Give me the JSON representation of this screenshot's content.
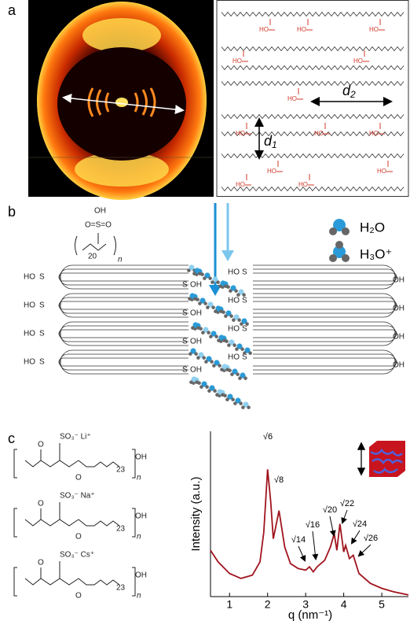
{
  "panel_a": {
    "label": "a",
    "d1": "d",
    "d1_sub": "1",
    "d2": "d",
    "d2_sub": "2",
    "acid_label": "HO"
  },
  "panel_b": {
    "label": "b",
    "monomer": {
      "oh": "OH",
      "sulfonyl": "O=S=O",
      "repeat": "20",
      "n": "n"
    },
    "legend": [
      {
        "name": "H₂O"
      },
      {
        "name": "H₃O⁺"
      }
    ],
    "end_left": "HO",
    "end_right": "OH",
    "sulfur": "S"
  },
  "panel_c": {
    "label": "c",
    "polymers": [
      {
        "group": "SO₃⁻ Li⁺",
        "repeat": "23",
        "n": "n",
        "end": "OH",
        "oxygen": "O"
      },
      {
        "group": "SO₃⁻ Na⁺",
        "repeat": "23",
        "n": "n",
        "end": "OH",
        "oxygen": "O"
      },
      {
        "group": "SO₃⁻ Cs⁺",
        "repeat": "23",
        "n": "n",
        "end": "OH",
        "oxygen": "O"
      }
    ]
  },
  "chart_data": {
    "type": "line",
    "x_label": "q (nm⁻¹)",
    "y_label": "Intensity (a.u.)",
    "x": [
      0.5,
      0.7,
      1.0,
      1.3,
      1.6,
      1.8,
      1.9,
      2.0,
      2.08,
      2.15,
      2.3,
      2.45,
      2.6,
      2.8,
      3.0,
      3.1,
      3.2,
      3.3,
      3.5,
      3.65,
      3.75,
      3.82,
      3.9,
      4.0,
      4.05,
      4.15,
      4.25,
      4.4,
      4.7,
      5.0,
      5.3,
      5.7
    ],
    "series": [
      {
        "color": "#a0141e",
        "values": [
          0.28,
          0.21,
          0.14,
          0.11,
          0.13,
          0.21,
          0.39,
          0.77,
          0.58,
          0.35,
          0.52,
          0.3,
          0.2,
          0.17,
          0.16,
          0.18,
          0.15,
          0.18,
          0.22,
          0.3,
          0.38,
          0.28,
          0.44,
          0.27,
          0.31,
          0.23,
          0.25,
          0.14,
          0.08,
          0.05,
          0.03,
          0.01
        ]
      }
    ],
    "xlim": [
      0.5,
      5.7
    ],
    "xticks": [
      1,
      2,
      3,
      4,
      5
    ],
    "ylim": [
      0,
      1
    ],
    "annotations": [
      "√6",
      "√8",
      "√14",
      "√16",
      "√20",
      "√22",
      "√24",
      "√26"
    ]
  }
}
